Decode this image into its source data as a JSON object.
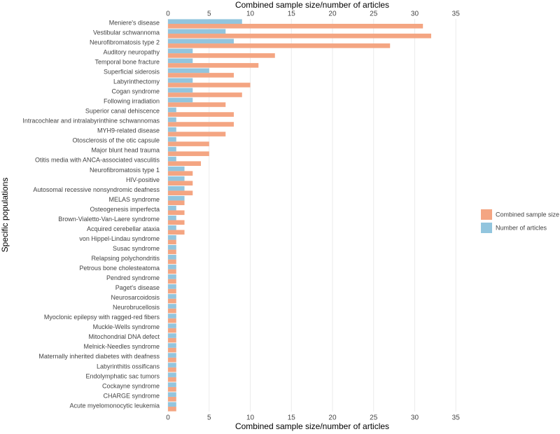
{
  "chart_data": {
    "type": "grouped-hbar",
    "x_label": "Combined sample size/number of articles",
    "y_label": "Specific populations",
    "categories": [
      "Meniere's disease",
      "Vestibular schwannoma",
      "Neurofibromatosis type 2",
      "Auditory neuropathy",
      "Temporal bone fracture",
      "Superficial siderosis",
      "Labyrinthectomy",
      "Cogan syndrome",
      "Following irradiation",
      "Superior canal dehiscence",
      "Intracochlear and intralabyrinthine schwannomas",
      "MYH9-related disease",
      "Otosclerosis of the otic capsule",
      "Major blunt head trauma",
      "Otitis media with ANCA-associated vasculitis",
      "Neurofibromatosis type 1",
      "HIV-positive",
      "Autosomal recessive nonsyndromic deafness",
      "MELAS syndrome",
      "Osteogenesis imperfecta",
      "Brown-Vialetto-Van-Laere syndrome",
      "Acquired cerebellar ataxia",
      "von Hippel-Lindau syndrome",
      "Susac syndrome",
      "Relapsing polychondritis",
      "Petrous bone cholesteatoma",
      "Pendred syndrome",
      "Paget's disease",
      "Neurosarcoidosis",
      "Neurobrucellosis",
      "Myoclonic epilepsy with ragged-red fibers",
      "Muckle-Wells syndrome",
      "Mitochondrial DNA defect",
      "Melnick-Needles syndrome",
      "Maternally inherited diabetes with deafness",
      "Labyrinthitis ossificans",
      "Endolymphatic sac tumors",
      "Cockayne syndrome",
      "CHARGE syndrome",
      "Acute myelomonocytic leukemia"
    ],
    "series": [
      {
        "name": "Combined sample size",
        "color": "#f4a582",
        "values": [
          31,
          32,
          27,
          13,
          11,
          8,
          10,
          9,
          7,
          8,
          8,
          7,
          5,
          5,
          4,
          3,
          3,
          3,
          2,
          2,
          2,
          2,
          1,
          1,
          1,
          1,
          1,
          1,
          1,
          1,
          1,
          1,
          1,
          1,
          1,
          1,
          1,
          1,
          1,
          1
        ]
      },
      {
        "name": "Number of articles",
        "color": "#92c5de",
        "values": [
          9,
          7,
          8,
          3,
          3,
          5,
          3,
          3,
          3,
          1,
          1,
          1,
          1,
          1,
          1,
          2,
          2,
          2,
          2,
          1,
          1,
          1,
          1,
          1,
          1,
          1,
          1,
          1,
          1,
          1,
          1,
          1,
          1,
          1,
          1,
          1,
          1,
          1,
          1,
          1
        ]
      }
    ],
    "xlim": [
      -0.6,
      36.6
    ],
    "xticks": [
      0,
      5,
      10,
      15,
      20,
      25,
      30,
      35
    ],
    "grid": true,
    "legend": "right"
  }
}
